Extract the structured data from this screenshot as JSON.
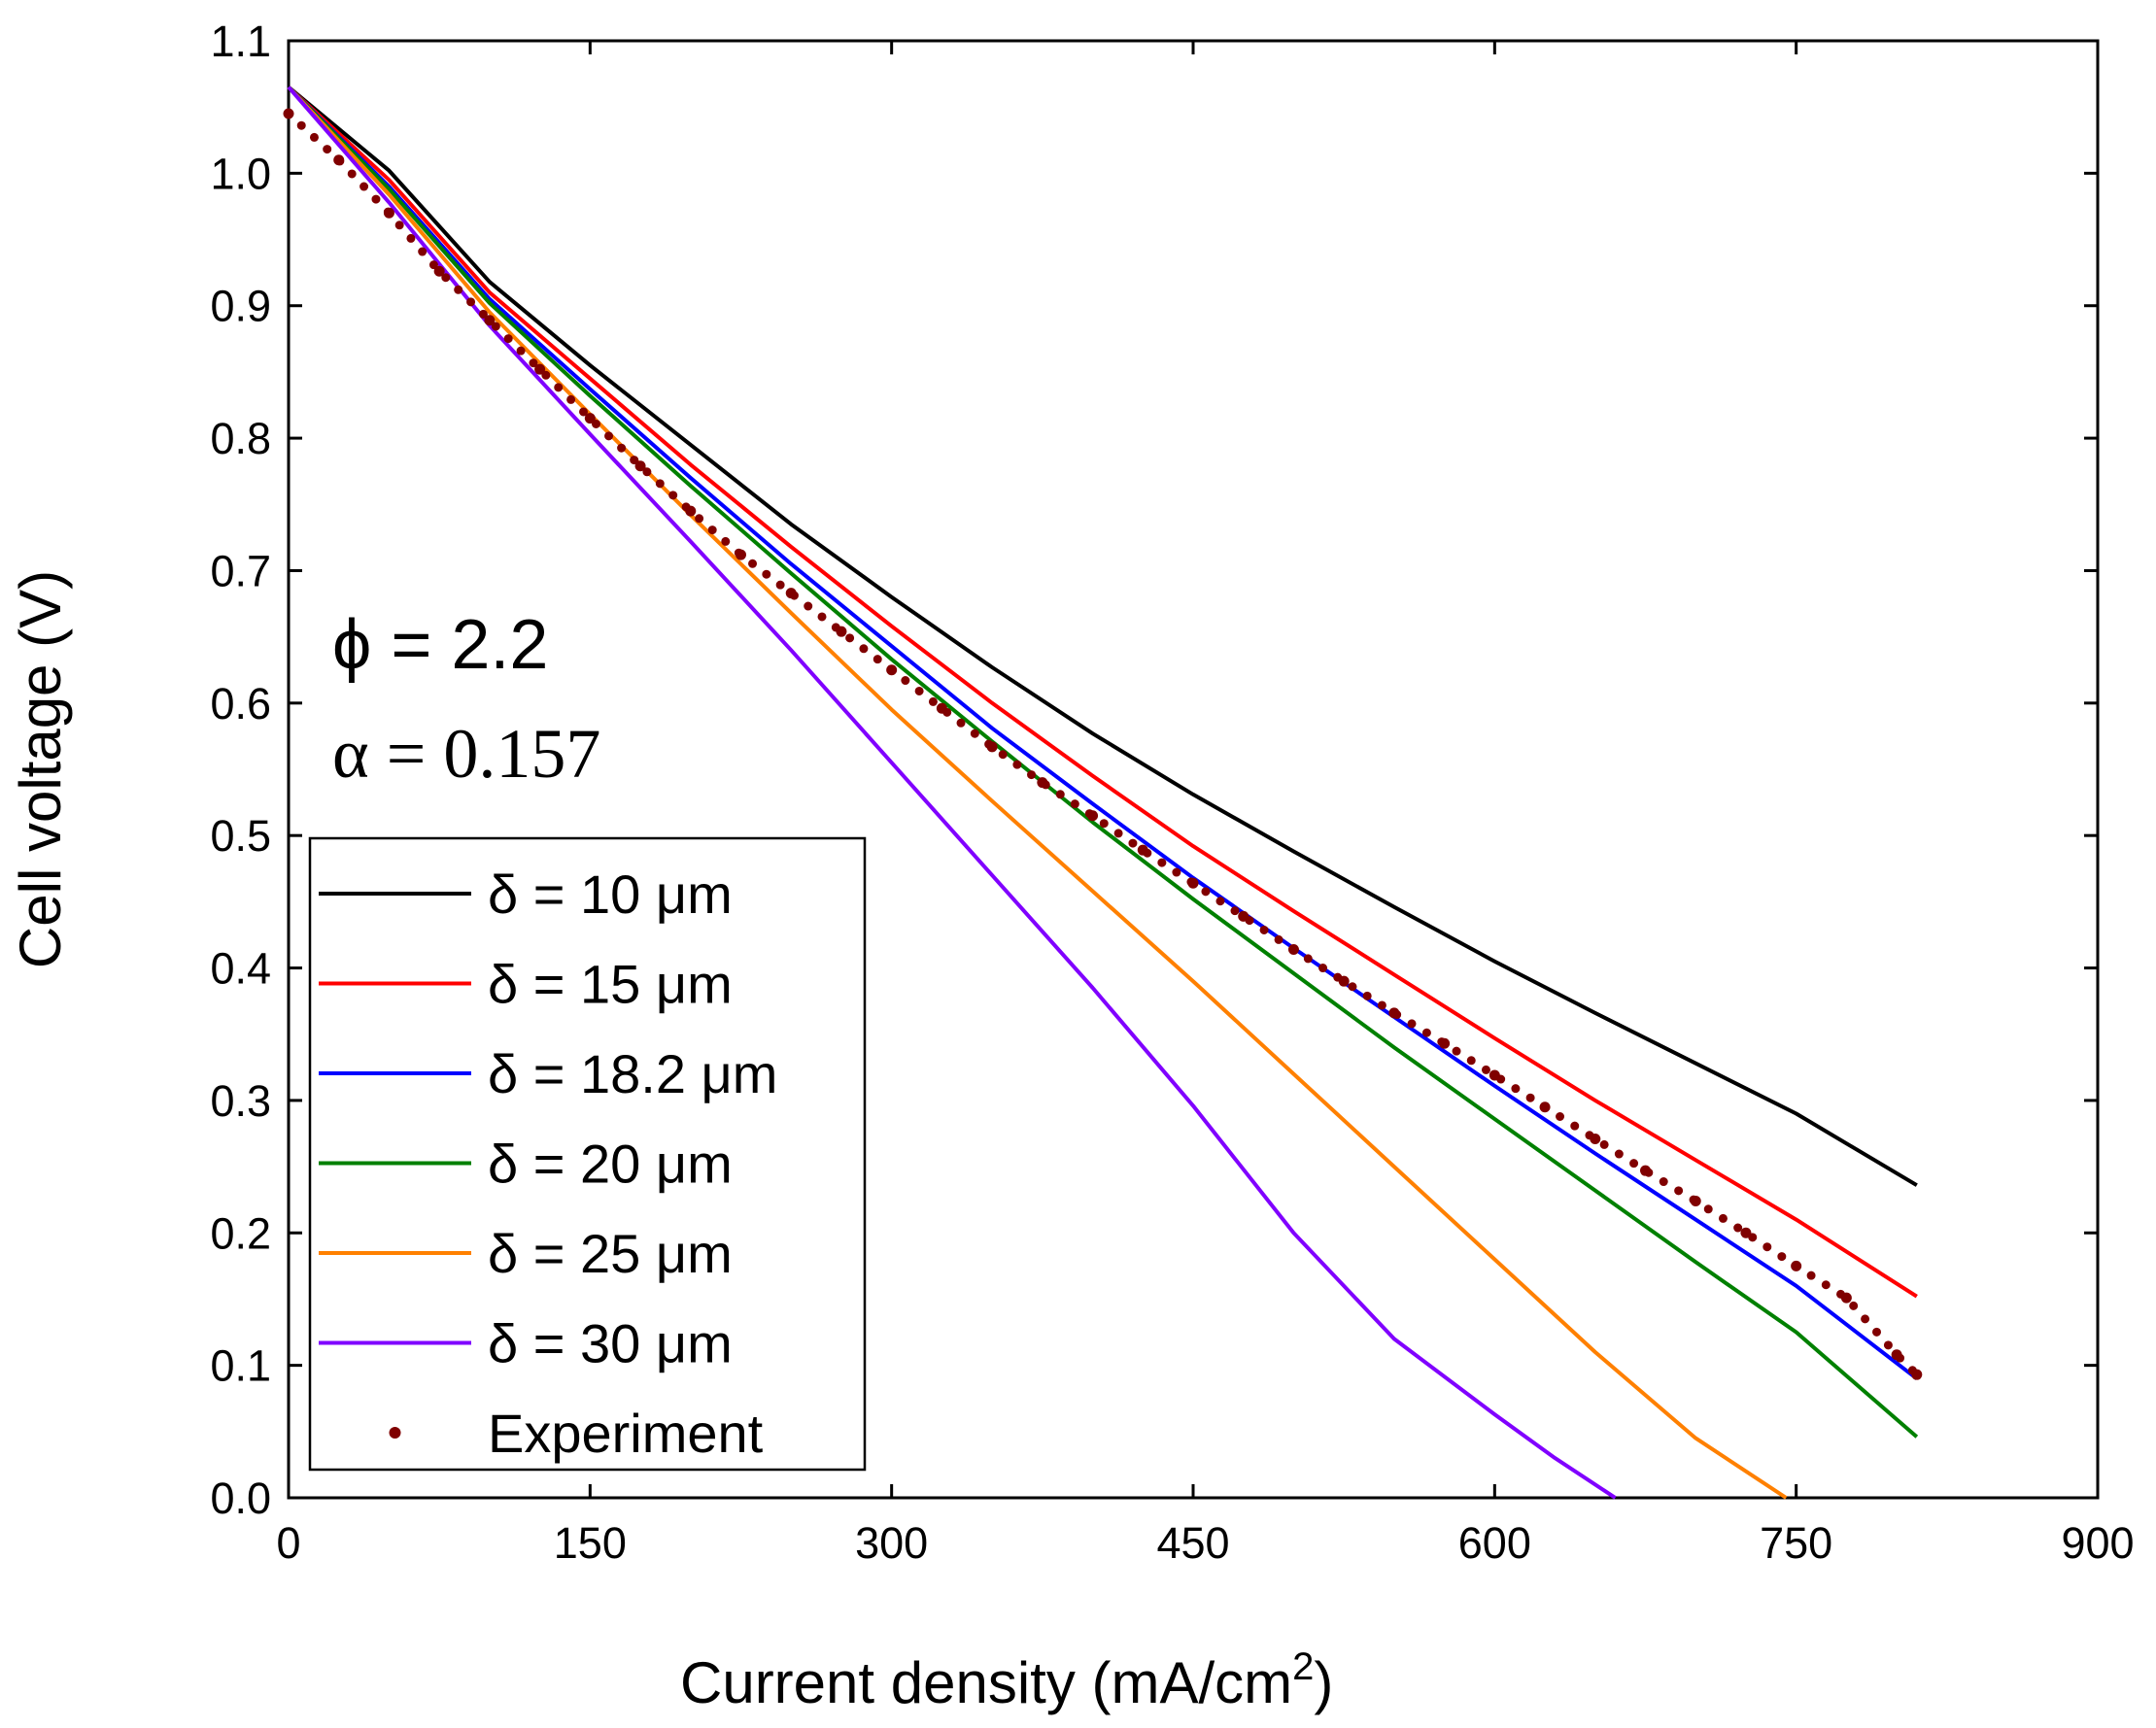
{
  "chart_data": {
    "type": "line",
    "xlabel": "Current density (mA/cm",
    "xlabel_sup": "2",
    "xlabel_end": ")",
    "ylabel": "Cell voltage (V)",
    "xlim": [
      0,
      900
    ],
    "ylim": [
      0,
      1.1
    ],
    "xticks": [
      0,
      150,
      300,
      450,
      600,
      750,
      900
    ],
    "xtick_labels": [
      "0",
      "150",
      "300",
      "450",
      "600",
      "750",
      "900"
    ],
    "yticks": [
      0,
      0.1,
      0.2,
      0.3,
      0.4,
      0.5,
      0.6,
      0.7,
      0.8,
      0.9,
      1.0,
      1.1
    ],
    "ytick_labels": [
      "0.0",
      "0.1",
      "0.2",
      "0.3",
      "0.4",
      "0.5",
      "0.6",
      "0.7",
      "0.8",
      "0.9",
      "1.0",
      "1.1"
    ],
    "annotations": {
      "phi": "ϕ = 2.2",
      "alpha": "α = 0.157"
    },
    "legend_position": "lower-left",
    "series": [
      {
        "name": "δ = 10 μm",
        "color": "#000000",
        "style": "line",
        "x": [
          0,
          50,
          100,
          150,
          200,
          250,
          300,
          350,
          400,
          450,
          500,
          550,
          600,
          650,
          700,
          750,
          810
        ],
        "y": [
          1.065,
          1.002,
          0.918,
          0.855,
          0.795,
          0.735,
          0.68,
          0.627,
          0.577,
          0.531,
          0.488,
          0.446,
          0.405,
          0.366,
          0.328,
          0.29,
          0.236
        ]
      },
      {
        "name": "δ = 15 μm",
        "color": "#ff0000",
        "style": "line",
        "x": [
          0,
          50,
          100,
          150,
          200,
          250,
          300,
          350,
          400,
          450,
          500,
          550,
          600,
          650,
          700,
          750,
          810
        ],
        "y": [
          1.065,
          0.995,
          0.91,
          0.845,
          0.78,
          0.718,
          0.658,
          0.6,
          0.545,
          0.492,
          0.443,
          0.395,
          0.347,
          0.3,
          0.255,
          0.21,
          0.152
        ]
      },
      {
        "name": "δ = 18.2 μm",
        "color": "#0000ff",
        "style": "line",
        "x": [
          0,
          50,
          100,
          150,
          200,
          250,
          300,
          350,
          400,
          450,
          500,
          550,
          600,
          650,
          700,
          750,
          810
        ],
        "y": [
          1.065,
          0.99,
          0.905,
          0.837,
          0.77,
          0.705,
          0.643,
          0.581,
          0.524,
          0.468,
          0.415,
          0.363,
          0.311,
          0.26,
          0.21,
          0.16,
          0.09
        ]
      },
      {
        "name": "δ = 20 μm",
        "color": "#008000",
        "style": "line",
        "x": [
          0,
          50,
          100,
          150,
          200,
          250,
          300,
          350,
          400,
          450,
          500,
          550,
          600,
          650,
          700,
          750,
          810
        ],
        "y": [
          1.065,
          0.988,
          0.902,
          0.832,
          0.764,
          0.698,
          0.633,
          0.571,
          0.51,
          0.452,
          0.396,
          0.34,
          0.286,
          0.232,
          0.178,
          0.125,
          0.046
        ]
      },
      {
        "name": "δ = 25 μm",
        "color": "#ff8000",
        "style": "line",
        "x": [
          0,
          50,
          100,
          150,
          200,
          250,
          300,
          350,
          400,
          450,
          500,
          550,
          600,
          650,
          700,
          745
        ],
        "y": [
          1.065,
          0.984,
          0.895,
          0.818,
          0.742,
          0.668,
          0.595,
          0.526,
          0.458,
          0.39,
          0.32,
          0.25,
          0.18,
          0.11,
          0.045,
          0.0
        ]
      },
      {
        "name": "δ = 30 μm",
        "color": "#8000ff",
        "style": "line",
        "x": [
          0,
          50,
          100,
          150,
          200,
          250,
          300,
          350,
          400,
          450,
          500,
          550,
          600,
          630,
          660
        ],
        "y": [
          1.065,
          0.978,
          0.885,
          0.803,
          0.722,
          0.64,
          0.555,
          0.47,
          0.385,
          0.296,
          0.2,
          0.12,
          0.063,
          0.03,
          0.0
        ]
      },
      {
        "name": "Experiment",
        "color": "#800000",
        "style": "dots",
        "x": [
          0,
          25,
          50,
          75,
          100,
          125,
          150,
          175,
          200,
          225,
          250,
          275,
          300,
          325,
          350,
          375,
          400,
          425,
          450,
          475,
          500,
          525,
          550,
          575,
          600,
          625,
          650,
          675,
          700,
          725,
          750,
          775,
          800,
          810
        ],
        "y": [
          1.045,
          1.01,
          0.97,
          0.926,
          0.889,
          0.852,
          0.815,
          0.779,
          0.745,
          0.712,
          0.683,
          0.654,
          0.625,
          0.596,
          0.567,
          0.54,
          0.515,
          0.489,
          0.464,
          0.439,
          0.414,
          0.39,
          0.366,
          0.343,
          0.319,
          0.295,
          0.271,
          0.247,
          0.224,
          0.2,
          0.175,
          0.151,
          0.108,
          0.093
        ]
      }
    ]
  }
}
